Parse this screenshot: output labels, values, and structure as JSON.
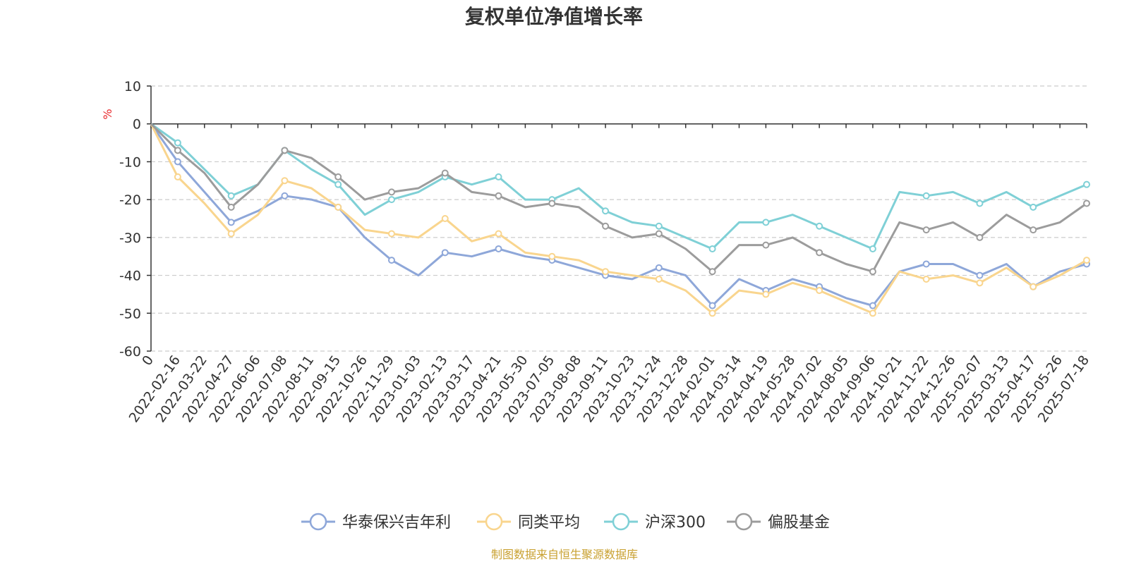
{
  "chart_data": {
    "type": "line",
    "title": "复权单位净值增长率",
    "y_unit": "%",
    "ylim": [
      -60,
      10
    ],
    "y_ticks": [
      10,
      0,
      -10,
      -20,
      -30,
      -40,
      -50,
      -60
    ],
    "grid": "y-dashed",
    "legend_position": "bottom-center",
    "x_tick_labels": [
      "0",
      "2022-02-16",
      "2022-03-22",
      "2022-04-27",
      "2022-06-06",
      "2022-07-08",
      "2022-08-11",
      "2022-09-15",
      "2022-10-26",
      "2022-11-29",
      "2023-01-03",
      "2023-02-13",
      "2023-03-17",
      "2023-04-21",
      "2023-05-30",
      "2023-07-05",
      "2023-08-08",
      "2023-09-11",
      "2023-10-23",
      "2023-11-24",
      "2023-12-28",
      "2024-02-01",
      "2024-03-14",
      "2024-04-19",
      "2024-05-28",
      "2024-07-02",
      "2024-08-05",
      "2024-09-06",
      "2024-10-21",
      "2024-11-22",
      "2024-12-26",
      "2025-02-07",
      "2025-03-13",
      "2025-04-17",
      "2025-05-26",
      "2025-07-18"
    ],
    "x_index": [
      0,
      1,
      2,
      3,
      4,
      5,
      6,
      7,
      8,
      9,
      10,
      11,
      12,
      13,
      14,
      15,
      16,
      17,
      18,
      19,
      20,
      21,
      22,
      23,
      24,
      25,
      26,
      27,
      28,
      29,
      30,
      31,
      32,
      33,
      34,
      35
    ],
    "series": [
      {
        "name": "华泰保兴吉年利",
        "color": "#8ea7d9",
        "values": [
          0,
          -10,
          -18,
          -26,
          -23,
          -19,
          -20,
          -22,
          -30,
          -36,
          -40,
          -34,
          -35,
          -33,
          -35,
          -36,
          -38,
          -40,
          -41,
          -38,
          -40,
          -48,
          -41,
          -44,
          -41,
          -43,
          -46,
          -48,
          -39,
          -37,
          -37,
          -40,
          -37,
          -43,
          -39,
          -37
        ]
      },
      {
        "name": "同类平均",
        "color": "#f9d58e",
        "values": [
          0,
          -14,
          -21,
          -29,
          -24,
          -15,
          -17,
          -22,
          -28,
          -29,
          -30,
          -25,
          -31,
          -29,
          -34,
          -35,
          -36,
          -39,
          -40,
          -41,
          -44,
          -50,
          -44,
          -45,
          -42,
          -44,
          -47,
          -50,
          -39,
          -41,
          -40,
          -42,
          -38,
          -43,
          -40,
          -36
        ]
      },
      {
        "name": "沪深300",
        "color": "#7fd0d6",
        "values": [
          0,
          -5,
          -12,
          -19,
          -16,
          -7,
          -12,
          -16,
          -24,
          -20,
          -18,
          -14,
          -16,
          -14,
          -20,
          -20,
          -17,
          -23,
          -26,
          -27,
          -30,
          -33,
          -26,
          -26,
          -24,
          -27,
          -30,
          -33,
          -18,
          -19,
          -18,
          -21,
          -18,
          -22,
          -19,
          -16
        ]
      },
      {
        "name": "偏股基金",
        "color": "#9c9c9c",
        "values": [
          0,
          -7,
          -13,
          -22,
          -16,
          -7,
          -9,
          -14,
          -20,
          -18,
          -17,
          -13,
          -18,
          -19,
          -22,
          -21,
          -22,
          -27,
          -30,
          -29,
          -33,
          -39,
          -32,
          -32,
          -30,
          -34,
          -37,
          -39,
          -26,
          -28,
          -26,
          -30,
          -24,
          -28,
          -26,
          -21
        ]
      }
    ]
  },
  "source_note": "制图数据来自恒生聚源数据库",
  "colors": {
    "axis": "#333333",
    "grid": "#cccccc",
    "unit": "#e8292c",
    "source": "#c9a131"
  }
}
